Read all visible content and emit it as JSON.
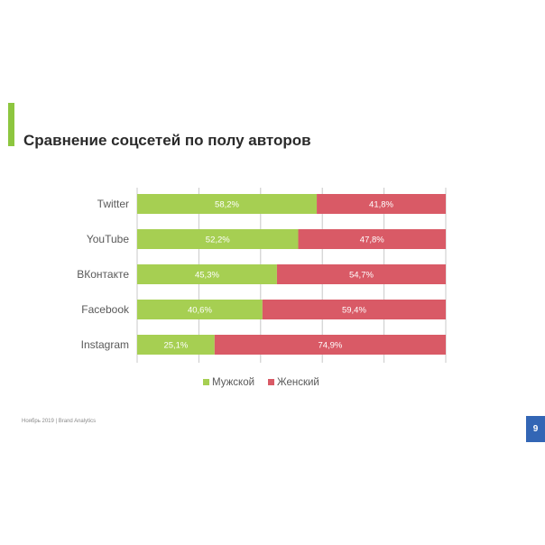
{
  "slide": {
    "title": "Сравнение соцсетей по полу авторов",
    "footer": "Ноябрь 2019 | Brand Analytics",
    "page_number": "9"
  },
  "colors": {
    "accent": "#8dc63f",
    "male": "#a6cf52",
    "female": "#d95a66",
    "badge": "#3366b5",
    "grid": "#c8c8c8",
    "axis_text": "#595959"
  },
  "chart_data": {
    "type": "bar",
    "orientation": "horizontal",
    "stacked": true,
    "title": "",
    "xlabel": "",
    "ylabel": "",
    "xlim": [
      0,
      100
    ],
    "categories": [
      "Twitter",
      "YouTube",
      "ВКонтакте",
      "Facebook",
      "Instagram"
    ],
    "series": [
      {
        "name": "Мужской",
        "values": [
          58.2,
          52.2,
          45.3,
          40.6,
          25.1
        ],
        "labels": [
          "58,2%",
          "52,2%",
          "45,3%",
          "40,6%",
          "25,1%"
        ]
      },
      {
        "name": "Женский",
        "values": [
          41.8,
          47.8,
          54.7,
          59.4,
          74.9
        ],
        "labels": [
          "41,8%",
          "47,8%",
          "54,7%",
          "59,4%",
          "74,9%"
        ]
      }
    ],
    "legend": "bottom",
    "grid": true
  }
}
